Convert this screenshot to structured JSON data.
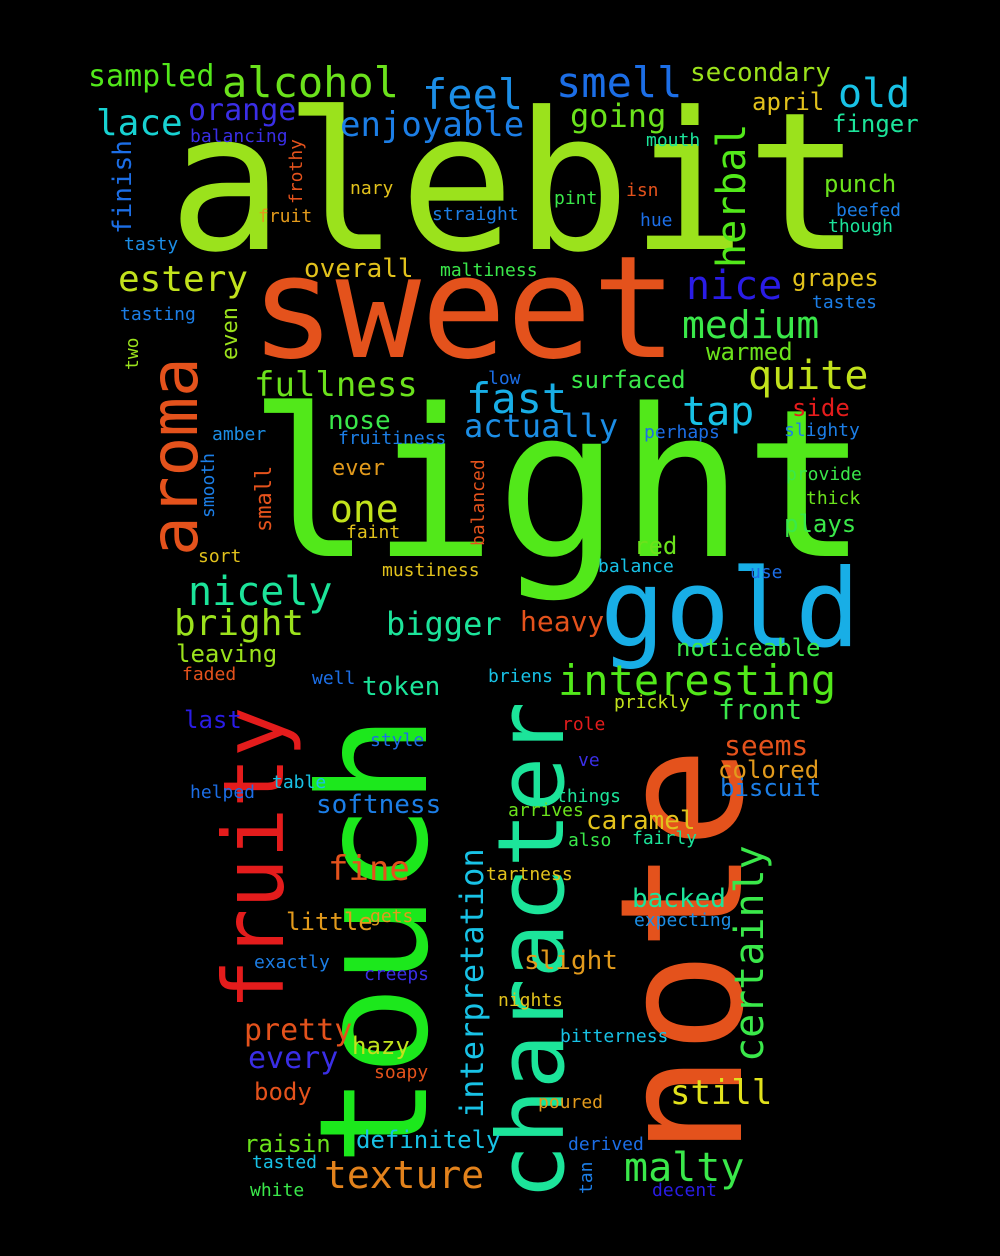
{
  "words": [
    {
      "text": "alebit",
      "color": "#9be21c"
    },
    {
      "text": "sweet",
      "color": "#e4521c"
    },
    {
      "text": "light",
      "color": "#52e81a"
    },
    {
      "text": "touch",
      "color": "#1ce81c"
    },
    {
      "text": "note",
      "color": "#e4521c"
    },
    {
      "text": "character",
      "color": "#1ce49a"
    },
    {
      "text": "gold",
      "color": "#18aee6"
    },
    {
      "text": "fruity",
      "color": "#e41c1c"
    },
    {
      "text": "aroma",
      "color": "#e4521c"
    },
    {
      "text": "alcohol",
      "color": "#6be21c"
    },
    {
      "text": "smell",
      "color": "#1c6ee6"
    },
    {
      "text": "feel",
      "color": "#1c8ee6"
    },
    {
      "text": "old",
      "color": "#18c2e6"
    },
    {
      "text": "sampled",
      "color": "#52e81a"
    },
    {
      "text": "secondary",
      "color": "#9be21c"
    },
    {
      "text": "enjoyable",
      "color": "#1c7ee6"
    },
    {
      "text": "lace",
      "color": "#18d2d2"
    },
    {
      "text": "orange",
      "color": "#3a2ee6"
    },
    {
      "text": "going",
      "color": "#6be21c"
    },
    {
      "text": "herbal",
      "color": "#52e81a"
    },
    {
      "text": "april",
      "color": "#e2c21c"
    },
    {
      "text": "finger",
      "color": "#1ce49a"
    },
    {
      "text": "balancing",
      "color": "#3a2ee6"
    },
    {
      "text": "mouth",
      "color": "#1ce49a"
    },
    {
      "text": "finish",
      "color": "#1c6ee6"
    },
    {
      "text": "frothy",
      "color": "#e4521c"
    },
    {
      "text": "punch",
      "color": "#6be21c"
    },
    {
      "text": "nary",
      "color": "#e2c21c"
    },
    {
      "text": "pint",
      "color": "#3ae84a"
    },
    {
      "text": "isn",
      "color": "#e4521c"
    },
    {
      "text": "beefed",
      "color": "#1c7ee6"
    },
    {
      "text": "fruit",
      "color": "#e29a1c"
    },
    {
      "text": "straight",
      "color": "#1c7ee6"
    },
    {
      "text": "hue",
      "color": "#1c6ee6"
    },
    {
      "text": "though",
      "color": "#1ce49a"
    },
    {
      "text": "tasty",
      "color": "#1c8ee6"
    },
    {
      "text": "estery",
      "color": "#c2e21c"
    },
    {
      "text": "nice",
      "color": "#2a1ce6"
    },
    {
      "text": "overall",
      "color": "#e2c21c"
    },
    {
      "text": "maltiness",
      "color": "#3ae84a"
    },
    {
      "text": "grapes",
      "color": "#e2c21c"
    },
    {
      "text": "tastes",
      "color": "#1c7ee6"
    },
    {
      "text": "tasting",
      "color": "#1c7ee6"
    },
    {
      "text": "medium",
      "color": "#3ae84a"
    },
    {
      "text": "two",
      "color": "#9be21c"
    },
    {
      "text": "even",
      "color": "#9be21c"
    },
    {
      "text": "warmed",
      "color": "#6be21c"
    },
    {
      "text": "quite",
      "color": "#c2e21c"
    },
    {
      "text": "fullness",
      "color": "#6be21c"
    },
    {
      "text": "low",
      "color": "#1c6ee6"
    },
    {
      "text": "surfaced",
      "color": "#3ae84a"
    },
    {
      "text": "fast",
      "color": "#18aee6"
    },
    {
      "text": "tap",
      "color": "#18c2e6"
    },
    {
      "text": "side",
      "color": "#e41c1c"
    },
    {
      "text": "nose",
      "color": "#3ae84a"
    },
    {
      "text": "actually",
      "color": "#1c8ee6"
    },
    {
      "text": "amber",
      "color": "#1c8ee6"
    },
    {
      "text": "fruitiness",
      "color": "#1c7ee6"
    },
    {
      "text": "perhaps",
      "color": "#1c6ee6"
    },
    {
      "text": "slighty",
      "color": "#1c7ee6"
    },
    {
      "text": "smooth",
      "color": "#1c7ee6"
    },
    {
      "text": "small",
      "color": "#e4521c"
    },
    {
      "text": "ever",
      "color": "#e29a1c"
    },
    {
      "text": "balanced",
      "color": "#e4521c"
    },
    {
      "text": "provide",
      "color": "#3ae84a"
    },
    {
      "text": "one",
      "color": "#c2e21c"
    },
    {
      "text": "thick",
      "color": "#6be21c"
    },
    {
      "text": "faint",
      "color": "#e2c21c"
    },
    {
      "text": "plays",
      "color": "#3ae84a"
    },
    {
      "text": "sort",
      "color": "#e2c21c"
    },
    {
      "text": "red",
      "color": "#6be21c"
    },
    {
      "text": "mustiness",
      "color": "#e2c21c"
    },
    {
      "text": "balance",
      "color": "#18c2e6"
    },
    {
      "text": "use",
      "color": "#1c6ee6"
    },
    {
      "text": "nicely",
      "color": "#1ce49a"
    },
    {
      "text": "bright",
      "color": "#9be21c"
    },
    {
      "text": "bigger",
      "color": "#1ce49a"
    },
    {
      "text": "heavy",
      "color": "#e4521c"
    },
    {
      "text": "leaving",
      "color": "#9be21c"
    },
    {
      "text": "noticeable",
      "color": "#3ae84a"
    },
    {
      "text": "interesting",
      "color": "#52e81a"
    },
    {
      "text": "faded",
      "color": "#e4521c"
    },
    {
      "text": "well",
      "color": "#1c6ee6"
    },
    {
      "text": "token",
      "color": "#1ce49a"
    },
    {
      "text": "briens",
      "color": "#18c2e6"
    },
    {
      "text": "prickly",
      "color": "#c2e21c"
    },
    {
      "text": "front",
      "color": "#3ae84a"
    },
    {
      "text": "last",
      "color": "#2a1ce6"
    },
    {
      "text": "role",
      "color": "#e41c1c"
    },
    {
      "text": "style",
      "color": "#1c6ee6"
    },
    {
      "text": "seems",
      "color": "#e4521c"
    },
    {
      "text": "ve",
      "color": "#3a2ee6"
    },
    {
      "text": "colored",
      "color": "#e29a1c"
    },
    {
      "text": "table",
      "color": "#18c2e6"
    },
    {
      "text": "biscuit",
      "color": "#1c7ee6"
    },
    {
      "text": "helped",
      "color": "#1c6ee6"
    },
    {
      "text": "things",
      "color": "#1ce49a"
    },
    {
      "text": "softness",
      "color": "#1c7ee6"
    },
    {
      "text": "arrives",
      "color": "#6be21c"
    },
    {
      "text": "caramel",
      "color": "#e2c21c"
    },
    {
      "text": "also",
      "color": "#3ae84a"
    },
    {
      "text": "fairly",
      "color": "#1ce49a"
    },
    {
      "text": "certainly",
      "color": "#3ae84a"
    },
    {
      "text": "fine",
      "color": "#e4521c"
    },
    {
      "text": "tartness",
      "color": "#e2c21c"
    },
    {
      "text": "interpretation",
      "color": "#18c2e6"
    },
    {
      "text": "backed",
      "color": "#1ce49a"
    },
    {
      "text": "little",
      "color": "#e29a1c"
    },
    {
      "text": "gets",
      "color": "#e29a1c"
    },
    {
      "text": "expecting",
      "color": "#1c8ee6"
    },
    {
      "text": "exactly",
      "color": "#1c7ee6"
    },
    {
      "text": "creeps",
      "color": "#3a2ee6"
    },
    {
      "text": "slight",
      "color": "#e29a1c"
    },
    {
      "text": "nights",
      "color": "#e2c21c"
    },
    {
      "text": "pretty",
      "color": "#e4521c"
    },
    {
      "text": "bitterness",
      "color": "#18c2e6"
    },
    {
      "text": "hazy",
      "color": "#c2e21c"
    },
    {
      "text": "every",
      "color": "#3a2ee6"
    },
    {
      "text": "soapy",
      "color": "#e4521c"
    },
    {
      "text": "body",
      "color": "#e4521c"
    },
    {
      "text": "still",
      "color": "#e2e21c"
    },
    {
      "text": "poured",
      "color": "#e29a1c"
    },
    {
      "text": "raisin",
      "color": "#6be21c"
    },
    {
      "text": "definitely",
      "color": "#18c2e6"
    },
    {
      "text": "derived",
      "color": "#1c6ee6"
    },
    {
      "text": "texture",
      "color": "#e2821c"
    },
    {
      "text": "malty",
      "color": "#3ae84a"
    },
    {
      "text": "tasted",
      "color": "#18c2e6"
    },
    {
      "text": "tan",
      "color": "#1c7ee6"
    },
    {
      "text": "white",
      "color": "#3ae84a"
    },
    {
      "text": "decent",
      "color": "#2a1ce6"
    }
  ]
}
